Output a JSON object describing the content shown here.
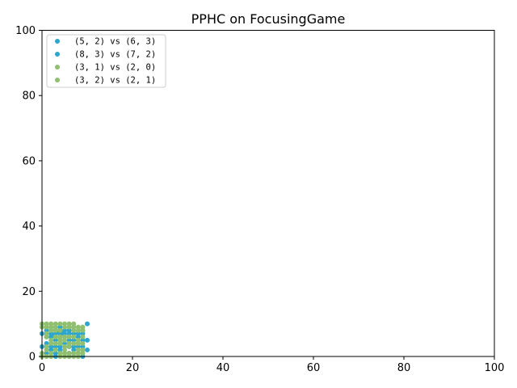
{
  "chart_data": {
    "type": "scatter",
    "title": "PPHC on FocusingGame",
    "xlabel": "",
    "ylabel": "",
    "xlim": [
      0,
      100
    ],
    "ylim": [
      0,
      100
    ],
    "x_ticks": [
      "0",
      "20",
      "40",
      "60",
      "80",
      "100"
    ],
    "y_ticks": [
      "0",
      "20",
      "40",
      "60",
      "80",
      "100"
    ],
    "grid": false,
    "legend_position": "upper-left",
    "series": [
      {
        "name": "(5, 2) vs (6, 3)",
        "color": "#2ca6cf",
        "points": [
          [
            0,
            7
          ],
          [
            0,
            3
          ],
          [
            1,
            1
          ],
          [
            1,
            4
          ],
          [
            1,
            8
          ],
          [
            2,
            6
          ],
          [
            2,
            2
          ],
          [
            2,
            9
          ],
          [
            3,
            5
          ],
          [
            3,
            8
          ],
          [
            3,
            0
          ],
          [
            3,
            3
          ],
          [
            4,
            6
          ],
          [
            4,
            9
          ],
          [
            4,
            2
          ],
          [
            5,
            4
          ],
          [
            5,
            7
          ],
          [
            5,
            1
          ],
          [
            6,
            8
          ],
          [
            6,
            3
          ],
          [
            6,
            0
          ],
          [
            7,
            5
          ],
          [
            7,
            2
          ],
          [
            7,
            9
          ],
          [
            8,
            6
          ],
          [
            8,
            1
          ],
          [
            8,
            4
          ],
          [
            9,
            8
          ],
          [
            9,
            3
          ],
          [
            9,
            0
          ],
          [
            10,
            10
          ],
          [
            10,
            5
          ],
          [
            10,
            2
          ],
          [
            3,
            7
          ],
          [
            4,
            7
          ],
          [
            3.5,
            7.5
          ],
          [
            4.5,
            7.2
          ],
          [
            2.5,
            6.5
          ],
          [
            5,
            8
          ],
          [
            6,
            5
          ]
        ]
      },
      {
        "name": "(8, 3) vs (7, 2)",
        "color": "#2ca6cf",
        "points": [
          [
            2,
            7
          ],
          [
            3,
            9
          ],
          [
            4,
            8
          ],
          [
            3,
            6
          ],
          [
            5,
            6
          ],
          [
            2,
            3
          ],
          [
            4,
            3
          ],
          [
            6,
            7
          ],
          [
            7,
            3
          ],
          [
            8,
            7
          ],
          [
            9,
            5
          ],
          [
            1,
            6
          ],
          [
            5,
            3
          ],
          [
            6,
            1
          ],
          [
            3,
            1
          ],
          [
            8,
            3
          ],
          [
            7,
            7
          ],
          [
            4,
            5
          ],
          [
            2,
            8
          ],
          [
            9,
            7
          ]
        ]
      },
      {
        "name": "(3, 1) vs (2, 0)",
        "color": "#8fbf6f",
        "points": [
          [
            0,
            10
          ],
          [
            0,
            0
          ],
          [
            1,
            9
          ],
          [
            1,
            2
          ],
          [
            1,
            6
          ],
          [
            2,
            4
          ],
          [
            2,
            1
          ],
          [
            2,
            8
          ],
          [
            3,
            10
          ],
          [
            3,
            2
          ],
          [
            3,
            4
          ],
          [
            4,
            0
          ],
          [
            4,
            5
          ],
          [
            4,
            10
          ],
          [
            5,
            9
          ],
          [
            5,
            2
          ],
          [
            5,
            5
          ],
          [
            6,
            10
          ],
          [
            6,
            6
          ],
          [
            6,
            1
          ],
          [
            7,
            10
          ],
          [
            7,
            4
          ],
          [
            7,
            0
          ],
          [
            8,
            9
          ],
          [
            8,
            2
          ],
          [
            8,
            5
          ],
          [
            9,
            1
          ],
          [
            9,
            9
          ],
          [
            9,
            4
          ],
          [
            1,
            0
          ],
          [
            2,
            10
          ],
          [
            5,
            0
          ],
          [
            6,
            4
          ],
          [
            7,
            8
          ],
          [
            8,
            0
          ],
          [
            3,
            8
          ]
        ]
      },
      {
        "name": "(3, 2) vs (2, 1)",
        "color": "#8fbf6f",
        "points": [
          [
            0,
            9
          ],
          [
            0,
            1
          ],
          [
            1,
            7
          ],
          [
            1,
            3
          ],
          [
            2,
            5
          ],
          [
            2,
            0
          ],
          [
            3,
            9
          ],
          [
            3,
            6
          ],
          [
            4,
            1
          ],
          [
            4,
            4
          ],
          [
            4,
            8
          ],
          [
            5,
            6
          ],
          [
            5,
            10
          ],
          [
            5,
            1
          ],
          [
            6,
            3
          ],
          [
            6,
            9
          ],
          [
            7,
            1
          ],
          [
            7,
            6
          ],
          [
            7,
            9
          ],
          [
            8,
            8
          ],
          [
            8,
            4
          ],
          [
            9,
            2
          ],
          [
            9,
            6
          ],
          [
            9,
            8
          ],
          [
            1,
            10
          ],
          [
            6,
            0
          ],
          [
            8,
            1
          ],
          [
            2,
            9
          ],
          [
            4,
            6
          ],
          [
            5,
            3
          ]
        ]
      }
    ]
  }
}
